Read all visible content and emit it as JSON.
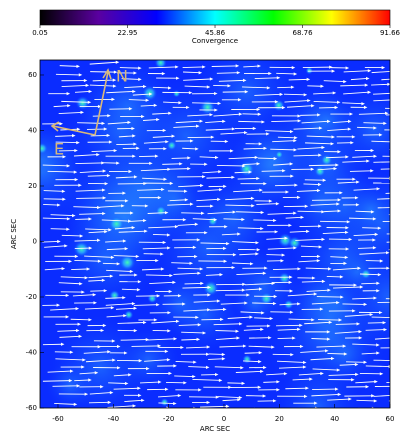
{
  "chart_data": {
    "type": "heatmap",
    "colorbar": {
      "label": "Convergence",
      "lim": [
        0.05,
        91.66
      ],
      "ticks": [
        0.05,
        22.95,
        45.86,
        68.76,
        91.66
      ],
      "colormap": [
        "#000000",
        "#5a00a0",
        "#0000ff",
        "#00ffff",
        "#00ff00",
        "#ffff00",
        "#ff0000"
      ]
    },
    "xlabel": "ARC SEC",
    "ylabel": "ARC SEC",
    "xlim": [
      -66.5,
      60
    ],
    "xticks": [
      -60,
      -40,
      -20,
      0,
      20,
      40,
      60
    ],
    "ylim": [
      -60,
      65.4
    ],
    "yticks": [
      -60,
      -40,
      -20,
      0,
      20,
      40,
      60
    ],
    "compass": {
      "north": "N",
      "east": "E"
    }
  }
}
